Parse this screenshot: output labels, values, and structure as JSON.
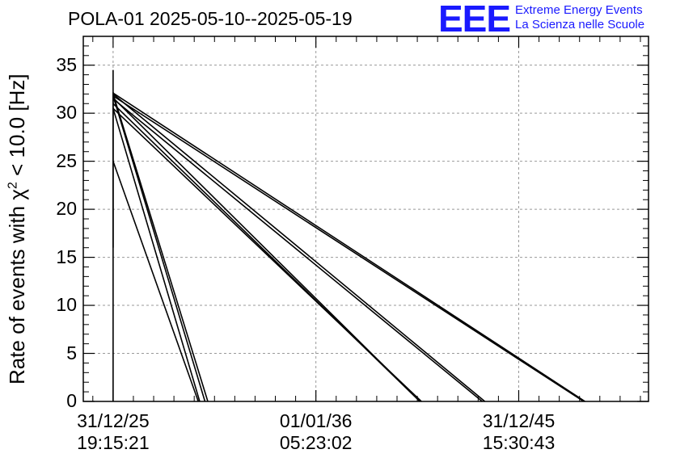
{
  "title": "POLA-01 2025-05-10--2025-05-19",
  "logo": {
    "mark": "EEE",
    "line1": "Extreme Energy Events",
    "line2": "La Scienza nelle Scuole",
    "color": "#1a1aff"
  },
  "chart_data": {
    "type": "line",
    "ylabel_prefix": "Rate of events with ",
    "ylabel_chi": "χ",
    "ylabel_sup": "2",
    "ylabel_suffix": " < 10.0 [Hz]",
    "ylim": [
      0,
      38
    ],
    "yticks": [
      0,
      5,
      10,
      15,
      20,
      25,
      30,
      35
    ],
    "xticks": [
      {
        "date": "31/12/25",
        "time": "19:15:21"
      },
      {
        "date": "01/01/36",
        "time": "05:23:02"
      },
      {
        "date": "31/12/45",
        "time": "15:30:43"
      }
    ],
    "grid": true,
    "series_note": "",
    "lines": [
      {
        "x0": 0.0,
        "y0": 34.5,
        "x1": 0.0,
        "y1": 0
      },
      {
        "x0": 0.0,
        "y0": 32.2,
        "x1": 0.0,
        "y1": 16
      },
      {
        "x0": 0.0,
        "y0": 32.0,
        "x1": 4.67,
        "y1": 0
      },
      {
        "x0": 0.0,
        "y0": 31.8,
        "x1": 4.53,
        "y1": 0
      },
      {
        "x0": 0.0,
        "y0": 30.5,
        "x1": 4.27,
        "y1": 0
      },
      {
        "x0": 0.0,
        "y0": 25.0,
        "x1": 4.2,
        "y1": 0
      },
      {
        "x0": 0.0,
        "y0": 31.6,
        "x1": 15.13,
        "y1": 0
      },
      {
        "x0": 0.0,
        "y0": 31.0,
        "x1": 15.13,
        "y1": 0
      },
      {
        "x0": 0.0,
        "y0": 30.5,
        "x1": 15.2,
        "y1": 0
      },
      {
        "x0": 0.0,
        "y0": 32.0,
        "x1": 18.33,
        "y1": 0
      },
      {
        "x0": 0.0,
        "y0": 31.5,
        "x1": 18.2,
        "y1": 0
      },
      {
        "x0": 0.0,
        "y0": 31.8,
        "x1": 23.2,
        "y1": 0
      },
      {
        "x0": 0.0,
        "y0": 32.1,
        "x1": 23.27,
        "y1": 0
      }
    ],
    "xlim": [
      -1.47,
      26.4
    ]
  }
}
